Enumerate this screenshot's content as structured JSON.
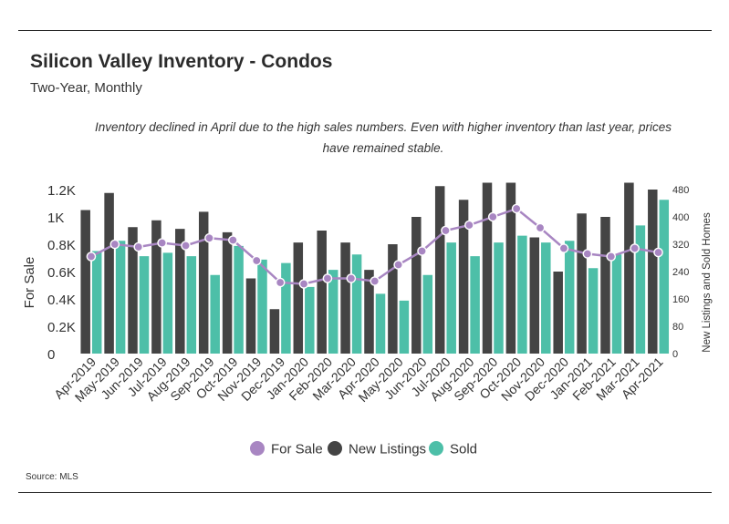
{
  "header": {
    "title": "Silicon Valley Inventory - Condos",
    "subtitle": "Two-Year, Monthly",
    "note": "Inventory declined in April due to the high sales numbers. Even with higher inventory than last year, prices have remained stable."
  },
  "footer": {
    "source": "Source:  MLS"
  },
  "chart_data": {
    "type": "bar",
    "categories": [
      "Apr-2019",
      "May-2019",
      "Jun-2019",
      "Jul-2019",
      "Aug-2019",
      "Sep-2019",
      "Oct-2019",
      "Nov-2019",
      "Dec-2019",
      "Jan-2020",
      "Feb-2020",
      "Mar-2020",
      "Apr-2020",
      "May-2020",
      "Jun-2020",
      "Jul-2020",
      "Aug-2020",
      "Sep-2020",
      "Oct-2020",
      "Nov-2020",
      "Dec-2020",
      "Jan-2021",
      "Feb-2021",
      "Mar-2021",
      "Apr-2021"
    ],
    "ylabel_left": "For Sale",
    "ylabel_right": "New Listings and Sold Homes",
    "y_left": {
      "min": 0,
      "max": 1200,
      "ticks": [
        0,
        200,
        400,
        600,
        800,
        1000,
        1200
      ],
      "tick_labels": [
        "0",
        "0.2K",
        "0.4K",
        "0.6K",
        "0.8K",
        "1K",
        "1.2K"
      ]
    },
    "y_right": {
      "min": 0,
      "max": 480,
      "ticks": [
        0,
        80,
        160,
        240,
        320,
        400,
        480
      ],
      "tick_labels": [
        "0",
        "80",
        "160",
        "240",
        "320",
        "400",
        "480"
      ]
    },
    "series": [
      {
        "name": "For Sale",
        "kind": "line",
        "axis": "left",
        "color": "#a886c2",
        "values": [
          710,
          800,
          780,
          810,
          790,
          845,
          830,
          680,
          520,
          510,
          550,
          550,
          530,
          650,
          750,
          900,
          940,
          1000,
          1060,
          920,
          770,
          730,
          710,
          770,
          740
        ]
      },
      {
        "name": "New Listings",
        "kind": "bar",
        "axis": "right",
        "color": "#444444",
        "values": [
          420,
          470,
          370,
          390,
          365,
          415,
          355,
          220,
          130,
          325,
          360,
          325,
          245,
          320,
          400,
          490,
          450,
          500,
          500,
          340,
          240,
          410,
          400,
          500,
          480
        ]
      },
      {
        "name": "Sold",
        "kind": "bar",
        "axis": "right",
        "color": "#4dbfa8",
        "values": [
          300,
          330,
          285,
          295,
          285,
          230,
          315,
          275,
          265,
          195,
          245,
          290,
          175,
          155,
          230,
          325,
          285,
          325,
          345,
          325,
          330,
          250,
          290,
          375,
          450
        ]
      }
    ],
    "legend": {
      "position": "bottom"
    },
    "grid": false
  }
}
